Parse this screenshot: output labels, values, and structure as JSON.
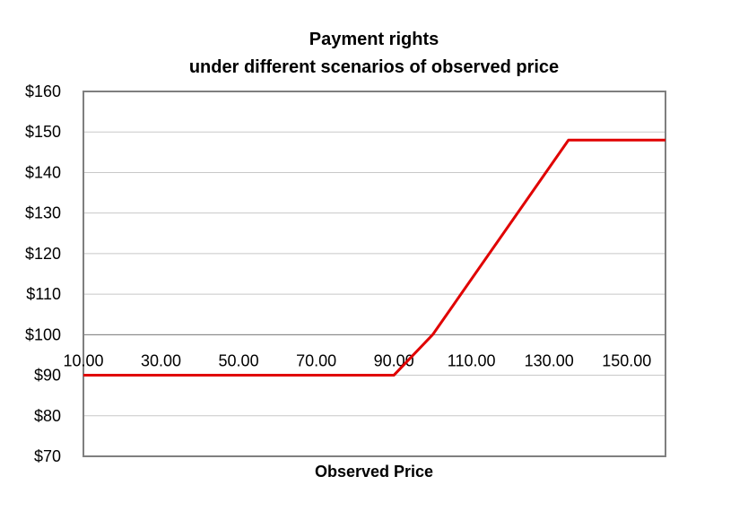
{
  "chart_data": {
    "type": "line",
    "title": "Payment rights",
    "subtitle": "under different scenarios of observed price",
    "xlabel": "Observed Price",
    "ylabel": "",
    "x_tick_labels": [
      "10.00",
      "30.00",
      "50.00",
      "70.00",
      "90.00",
      "110.00",
      "130.00",
      "150.00"
    ],
    "y_tick_labels": [
      "$70",
      "$80",
      "$90",
      "$100",
      "$110",
      "$120",
      "$130",
      "$140",
      "$150",
      "$160"
    ],
    "xlim": [
      10,
      160
    ],
    "ylim": [
      70,
      160
    ],
    "x_axis_crosses_y_at": 100,
    "grid": true,
    "legend": "none",
    "series": [
      {
        "color": "#e00000",
        "x": [
          10,
          90,
          100,
          135,
          160
        ],
        "y": [
          90,
          90,
          100,
          148,
          148
        ]
      }
    ]
  }
}
